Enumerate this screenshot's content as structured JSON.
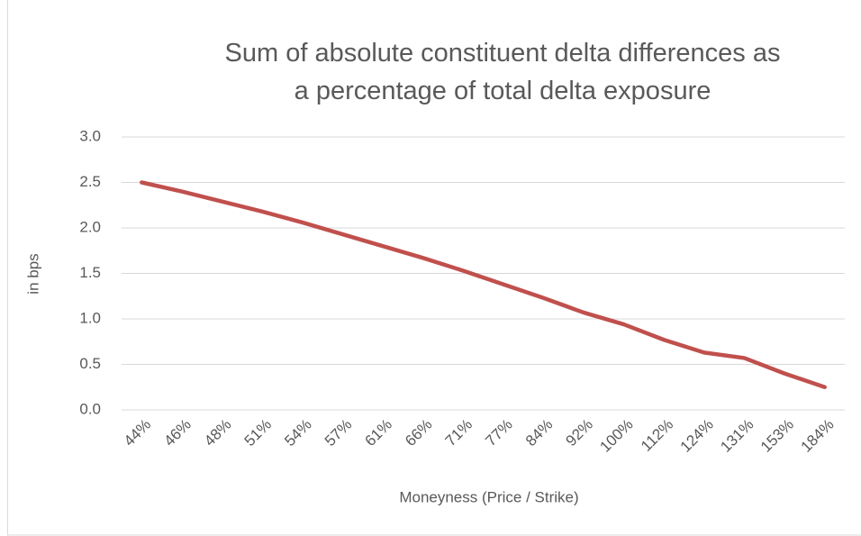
{
  "chart_data": {
    "type": "line",
    "title": "Sum of absolute constituent delta differences as a percentage of total delta exposure",
    "x_label": "Moneyness (Price / Strike)",
    "y_label": "in bps",
    "categories": [
      "44%",
      "46%",
      "48%",
      "51%",
      "54%",
      "57%",
      "61%",
      "66%",
      "71%",
      "77%",
      "84%",
      "92%",
      "100%",
      "112%",
      "124%",
      "131%",
      "153%",
      "184%"
    ],
    "values": [
      2.5,
      2.4,
      2.29,
      2.18,
      2.06,
      1.93,
      1.8,
      1.67,
      1.53,
      1.38,
      1.23,
      1.07,
      0.94,
      0.77,
      0.63,
      0.57,
      0.4,
      0.25
    ],
    "color": "#c0504d",
    "ylim": [
      0,
      3
    ],
    "yticks": [
      {
        "value": 0,
        "label": "0.0"
      },
      0.5,
      {
        "value": 1,
        "label": "1.0"
      },
      1.5,
      {
        "value": 2,
        "label": "2.0"
      },
      2.5,
      {
        "value": 3,
        "label": "3.0"
      }
    ],
    "grid": true
  }
}
